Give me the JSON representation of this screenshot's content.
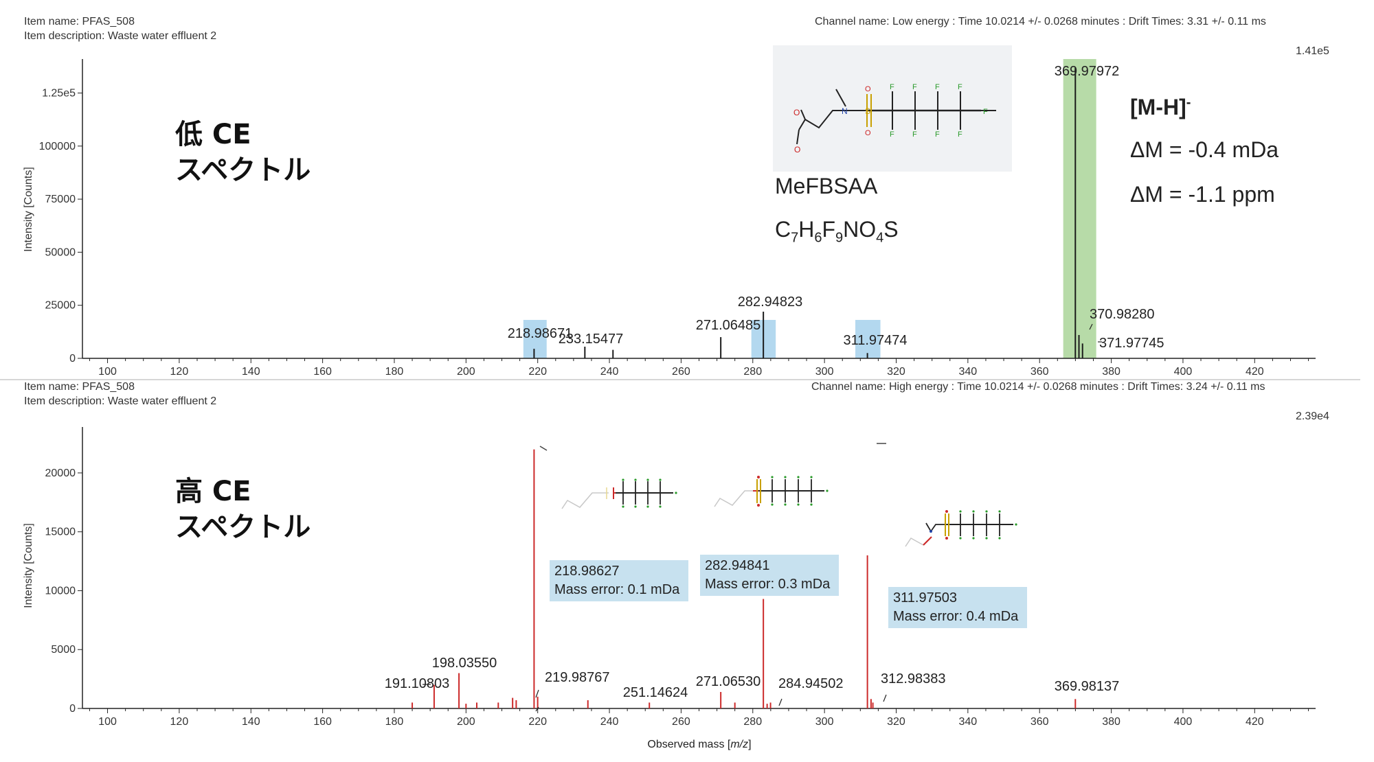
{
  "colors": {
    "low_stick": "#1a1a1a",
    "high_stick": "#cc2a2a",
    "blue_highlight": "#b3d8ef",
    "green_highlight": "#b7dba8",
    "box_blue": "#c7e1ef",
    "structure_bg": "#f0f2f4"
  },
  "top_panel": {
    "item_name": "Item name: PFAS_508",
    "item_description": "Item description: Waste water effluent 2",
    "channel_info": "Channel name: Low energy : Time 10.0214 +/- 0.0268 minutes : Drift Times: 3.31 +/- 0.11 ms",
    "max_intensity": "1.41e5",
    "ylabel": "Intensity [Counts]",
    "overlay_line1": "低 CE",
    "overlay_line2": "スペクトル",
    "compound_name": "MeFBSAA",
    "formula": {
      "c": "C",
      "c_n": "7",
      "h": "H",
      "h_n": "6",
      "f": "F",
      "f_n": "9",
      "no": "NO",
      "o_n": "4",
      "s": "S"
    },
    "ion": {
      "base": "[M-H]",
      "charge": "-"
    },
    "delta_mda": "ΔM = -0.4 mDa",
    "delta_ppm": "ΔM = -1.1 ppm"
  },
  "bottom_panel": {
    "item_name": "Item name: PFAS_508",
    "item_description": "Item description: Waste water effluent 2",
    "channel_info": "Channel name: High energy : Time 10.0214 +/- 0.0268 minutes : Drift Times: 3.24 +/- 0.11 ms",
    "max_intensity": "2.39e4",
    "ylabel": "Intensity [Counts]",
    "overlay_line1": "高 CE",
    "overlay_line2": "スペクトル",
    "fragments": [
      {
        "mass": "218.98627",
        "error": "Mass error: 0.1 mDa"
      },
      {
        "mass": "282.94841",
        "error": "Mass error: 0.3 mDa"
      },
      {
        "mass": "311.97503",
        "error": "Mass error: 0.4 mDa"
      }
    ]
  },
  "xlabel": "Observed mass [m/z]",
  "chart_data": [
    {
      "type": "bar",
      "panel": "Low energy",
      "ylabel": "Intensity [Counts]",
      "xlim": [
        93,
        437
      ],
      "ylim": [
        0,
        141000
      ],
      "x_ticks": [
        100,
        120,
        140,
        160,
        180,
        200,
        220,
        240,
        260,
        280,
        300,
        320,
        340,
        360,
        380,
        400,
        420
      ],
      "y_ticks": [
        {
          "value": 0,
          "label": "0"
        },
        {
          "value": 25000,
          "label": "25000"
        },
        {
          "value": 50000,
          "label": "50000"
        },
        {
          "value": 75000,
          "label": "75000"
        },
        {
          "value": 100000,
          "label": "100000"
        },
        {
          "value": 125000,
          "label": "1.25e5"
        }
      ],
      "highlights": [
        {
          "from": 216.0,
          "to": 222.5,
          "color": "blue"
        },
        {
          "from": 279.6,
          "to": 286.4,
          "color": "blue"
        },
        {
          "from": 308.6,
          "to": 315.6,
          "color": "blue"
        },
        {
          "from": 366.6,
          "to": 375.8,
          "color": "green"
        }
      ],
      "peaks": [
        {
          "x": 218.98671,
          "y": 4500,
          "label": "218.98671"
        },
        {
          "x": 233.15477,
          "y": 5500,
          "label": "233.15477"
        },
        {
          "x": 241.0,
          "y": 4000,
          "label": ""
        },
        {
          "x": 271.06485,
          "y": 10000,
          "label": "271.06485"
        },
        {
          "x": 282.94823,
          "y": 22000,
          "label": "282.94823"
        },
        {
          "x": 311.97474,
          "y": 2500,
          "label": "311.97474"
        },
        {
          "x": 369.97972,
          "y": 137000,
          "label": "369.97972"
        },
        {
          "x": 370.9828,
          "y": 11000,
          "label": "370.98280"
        },
        {
          "x": 371.97745,
          "y": 7000,
          "label": "371.97745"
        }
      ]
    },
    {
      "type": "bar",
      "panel": "High energy",
      "xlabel": "Observed mass [m/z]",
      "ylabel": "Intensity [Counts]",
      "xlim": [
        93,
        437
      ],
      "ylim": [
        0,
        23900
      ],
      "x_ticks": [
        100,
        120,
        140,
        160,
        180,
        200,
        220,
        240,
        260,
        280,
        300,
        320,
        340,
        360,
        380,
        400,
        420
      ],
      "y_ticks": [
        {
          "value": 0,
          "label": "0"
        },
        {
          "value": 5000,
          "label": "5000"
        },
        {
          "value": 10000,
          "label": "10000"
        },
        {
          "value": 15000,
          "label": "15000"
        },
        {
          "value": 20000,
          "label": "20000"
        }
      ],
      "peaks": [
        {
          "x": 185.0,
          "y": 500,
          "label": ""
        },
        {
          "x": 191.10803,
          "y": 2000,
          "label": "191.10803"
        },
        {
          "x": 198.0355,
          "y": 3000,
          "label": "198.03550"
        },
        {
          "x": 200.0,
          "y": 400,
          "label": ""
        },
        {
          "x": 203.0,
          "y": 500,
          "label": ""
        },
        {
          "x": 209.0,
          "y": 500,
          "label": ""
        },
        {
          "x": 213.0,
          "y": 900,
          "label": ""
        },
        {
          "x": 214.0,
          "y": 700,
          "label": ""
        },
        {
          "x": 218.98627,
          "y": 22000,
          "label": ""
        },
        {
          "x": 219.98767,
          "y": 1000,
          "label": "219.98767"
        },
        {
          "x": 234.0,
          "y": 700,
          "label": ""
        },
        {
          "x": 251.14624,
          "y": 500,
          "label": "251.14624"
        },
        {
          "x": 271.0653,
          "y": 1400,
          "label": "271.06530"
        },
        {
          "x": 275.0,
          "y": 500,
          "label": ""
        },
        {
          "x": 282.94841,
          "y": 9300,
          "label": ""
        },
        {
          "x": 284.0,
          "y": 400,
          "label": ""
        },
        {
          "x": 284.94502,
          "y": 500,
          "label": "284.94502"
        },
        {
          "x": 311.97503,
          "y": 13000,
          "label": ""
        },
        {
          "x": 312.98383,
          "y": 800,
          "label": "312.98383"
        },
        {
          "x": 313.5,
          "y": 500,
          "label": ""
        },
        {
          "x": 369.98137,
          "y": 800,
          "label": "369.98137"
        }
      ]
    }
  ]
}
